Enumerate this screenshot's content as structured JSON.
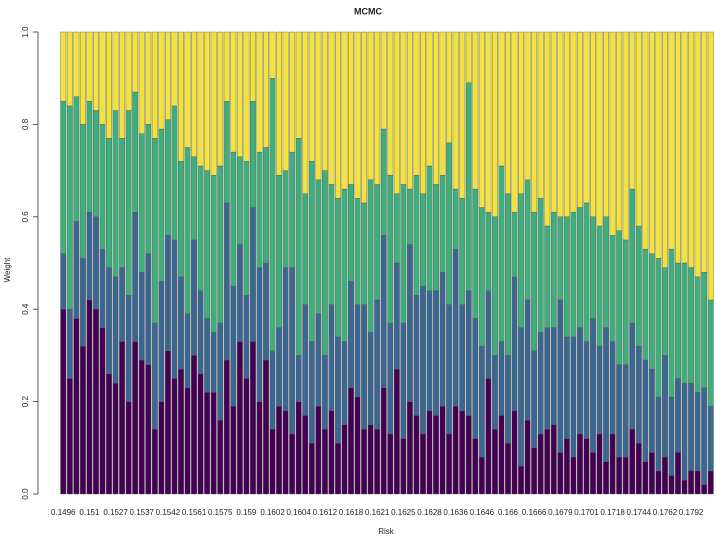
{
  "chart_data": {
    "type": "stacked_bar",
    "title": "MCMC",
    "x_label": "Risk",
    "y_label": "Weight",
    "categories": [
      "0.1496",
      null,
      null,
      null,
      "0.151",
      null,
      null,
      null,
      "0.1527",
      null,
      null,
      null,
      "0.1537",
      null,
      null,
      null,
      "0.1542",
      null,
      null,
      null,
      "0.1561",
      null,
      null,
      null,
      "0.1575",
      null,
      null,
      null,
      "0.159",
      null,
      null,
      null,
      "0.1602",
      null,
      null,
      null,
      "0.1604",
      null,
      null,
      null,
      "0.1612",
      null,
      null,
      null,
      "0.1618",
      null,
      null,
      null,
      "0.1621",
      null,
      null,
      null,
      "0.1625",
      null,
      null,
      null,
      "0.1628",
      null,
      null,
      null,
      "0.1636",
      null,
      null,
      null,
      "0.1646",
      null,
      null,
      null,
      "0.166",
      null,
      null,
      null,
      "0.1666",
      null,
      null,
      null,
      "0.1679",
      null,
      null,
      null,
      "0.1701",
      null,
      null,
      null,
      "0.1718",
      null,
      null,
      null,
      "0.1744",
      null,
      null,
      null,
      "0.1762",
      null,
      null,
      null,
      "0.1792",
      null,
      null,
      null
    ],
    "series": [
      {
        "color": "#440154",
        "values": [
          0.4,
          0.25,
          0.38,
          0.32,
          0.42,
          0.4,
          0.36,
          0.26,
          0.24,
          0.33,
          0.2,
          0.33,
          0.29,
          0.28,
          0.14,
          0.2,
          0.31,
          0.25,
          0.27,
          0.23,
          0.3,
          0.26,
          0.22,
          0.22,
          0.16,
          0.29,
          0.19,
          0.33,
          0.25,
          0.33,
          0.2,
          0.29,
          0.14,
          0.19,
          0.18,
          0.13,
          0.2,
          0.17,
          0.11,
          0.19,
          0.14,
          0.18,
          0.11,
          0.15,
          0.23,
          0.21,
          0.14,
          0.15,
          0.14,
          0.23,
          0.13,
          0.27,
          0.12,
          0.2,
          0.17,
          0.13,
          0.18,
          0.17,
          0.19,
          0.13,
          0.19,
          0.18,
          0.17,
          0.12,
          0.08,
          0.25,
          0.14,
          0.17,
          0.11,
          0.18,
          0.06,
          0.16,
          0.1,
          0.13,
          0.14,
          0.15,
          0.09,
          0.12,
          0.08,
          0.13,
          0.12,
          0.09,
          0.13,
          0.07,
          0.13,
          0.08,
          0.08,
          0.14,
          0.11,
          0.07,
          0.09,
          0.05,
          0.08,
          0.04,
          0.09,
          0.03,
          0.05,
          0.05,
          0.02,
          0.05
        ]
      },
      {
        "color": "#3b6690",
        "values": [
          0.12,
          0.15,
          0.21,
          0.19,
          0.19,
          0.2,
          0.17,
          0.23,
          0.23,
          0.16,
          0.23,
          0.28,
          0.19,
          0.24,
          0.23,
          0.26,
          0.25,
          0.3,
          0.2,
          0.16,
          0.25,
          0.18,
          0.16,
          0.13,
          0.21,
          0.34,
          0.26,
          0.21,
          0.18,
          0.29,
          0.29,
          0.21,
          0.17,
          0.17,
          0.31,
          0.36,
          0.1,
          0.24,
          0.22,
          0.2,
          0.16,
          0.23,
          0.23,
          0.18,
          0.23,
          0.2,
          0.27,
          0.2,
          0.28,
          0.33,
          0.24,
          0.23,
          0.25,
          0.34,
          0.26,
          0.32,
          0.26,
          0.27,
          0.29,
          0.28,
          0.34,
          0.23,
          0.27,
          0.26,
          0.24,
          0.19,
          0.16,
          0.16,
          0.19,
          0.29,
          0.3,
          0.26,
          0.21,
          0.22,
          0.22,
          0.21,
          0.33,
          0.22,
          0.26,
          0.23,
          0.21,
          0.29,
          0.19,
          0.29,
          0.2,
          0.2,
          0.2,
          0.23,
          0.21,
          0.22,
          0.18,
          0.16,
          0.22,
          0.17,
          0.16,
          0.21,
          0.19,
          0.17,
          0.21,
          0.14
        ]
      },
      {
        "color": "#3fae7b",
        "values": [
          0.33,
          0.44,
          0.27,
          0.29,
          0.24,
          0.23,
          0.27,
          0.28,
          0.36,
          0.28,
          0.4,
          0.26,
          0.3,
          0.28,
          0.4,
          0.33,
          0.25,
          0.29,
          0.25,
          0.36,
          0.18,
          0.27,
          0.32,
          0.34,
          0.34,
          0.22,
          0.29,
          0.19,
          0.29,
          0.23,
          0.25,
          0.25,
          0.59,
          0.33,
          0.21,
          0.25,
          0.47,
          0.24,
          0.39,
          0.29,
          0.4,
          0.26,
          0.3,
          0.33,
          0.21,
          0.23,
          0.22,
          0.33,
          0.25,
          0.23,
          0.32,
          0.15,
          0.3,
          0.12,
          0.26,
          0.2,
          0.27,
          0.23,
          0.21,
          0.35,
          0.13,
          0.23,
          0.45,
          0.28,
          0.3,
          0.17,
          0.3,
          0.38,
          0.35,
          0.14,
          0.29,
          0.26,
          0.3,
          0.29,
          0.22,
          0.25,
          0.18,
          0.26,
          0.27,
          0.26,
          0.3,
          0.22,
          0.26,
          0.24,
          0.23,
          0.29,
          0.27,
          0.29,
          0.26,
          0.24,
          0.25,
          0.3,
          0.19,
          0.32,
          0.25,
          0.26,
          0.25,
          0.25,
          0.25,
          0.23
        ]
      },
      {
        "color": "#f4e23c",
        "values": [
          0.15,
          0.16,
          0.14,
          0.2,
          0.15,
          0.17,
          0.2,
          0.23,
          0.17,
          0.23,
          0.17,
          0.13,
          0.22,
          0.2,
          0.23,
          0.21,
          0.19,
          0.16,
          0.28,
          0.25,
          0.27,
          0.29,
          0.3,
          0.31,
          0.29,
          0.15,
          0.26,
          0.27,
          0.28,
          0.15,
          0.26,
          0.25,
          0.1,
          0.31,
          0.3,
          0.26,
          0.23,
          0.35,
          0.28,
          0.32,
          0.3,
          0.33,
          0.36,
          0.34,
          0.33,
          0.36,
          0.37,
          0.32,
          0.33,
          0.21,
          0.31,
          0.35,
          0.33,
          0.34,
          0.31,
          0.35,
          0.29,
          0.33,
          0.31,
          0.24,
          0.34,
          0.36,
          0.11,
          0.34,
          0.38,
          0.39,
          0.4,
          0.29,
          0.35,
          0.39,
          0.35,
          0.32,
          0.39,
          0.36,
          0.42,
          0.39,
          0.4,
          0.4,
          0.39,
          0.38,
          0.37,
          0.4,
          0.42,
          0.4,
          0.44,
          0.43,
          0.45,
          0.34,
          0.42,
          0.47,
          0.48,
          0.49,
          0.51,
          0.47,
          0.5,
          0.5,
          0.51,
          0.53,
          0.52,
          0.58
        ]
      }
    ],
    "ylim": [
      0,
      1
    ],
    "yticks": [
      {
        "value": 0,
        "label": "0.0"
      },
      0.2,
      0.4,
      0.6,
      0.8,
      {
        "value": 1,
        "label": "1.0"
      }
    ]
  }
}
